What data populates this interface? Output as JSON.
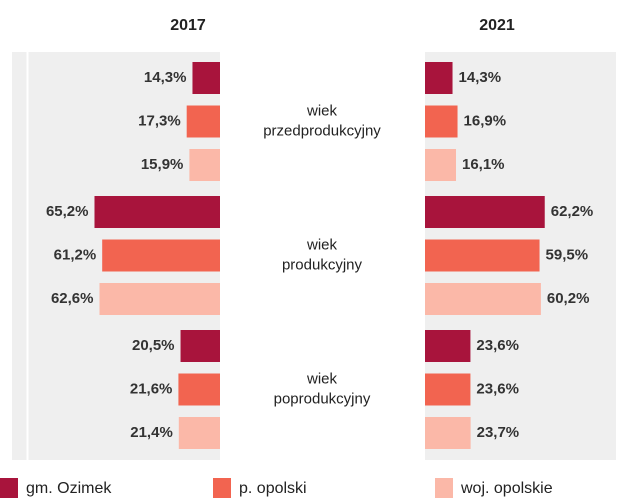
{
  "chart_data": {
    "type": "bar",
    "categories": [
      [
        "wiek",
        "przedprodukcyjny"
      ],
      [
        "wiek",
        "produkcyjny"
      ],
      [
        "wiek",
        "poprodukcyjny"
      ]
    ],
    "xlim": [
      0,
      100
    ],
    "series": [
      {
        "name": "gm. Ozimek",
        "color": "#a8143c"
      },
      {
        "name": "p. opolski",
        "color": "#f26450"
      },
      {
        "name": "woj. opolskie",
        "color": "#fbb8a8"
      }
    ],
    "panels": [
      {
        "title": "2017",
        "values": [
          [
            14.3,
            65.2,
            20.5
          ],
          [
            17.3,
            61.2,
            21.6
          ],
          [
            15.9,
            62.6,
            21.4
          ]
        ],
        "value_labels": [
          [
            "14,3%",
            "65,2%",
            "20,5%"
          ],
          [
            "17,3%",
            "61,2%",
            "21,6%"
          ],
          [
            "15,9%",
            "62,6%",
            "21,4%"
          ]
        ]
      },
      {
        "title": "2021",
        "values": [
          [
            14.3,
            62.2,
            23.6
          ],
          [
            16.9,
            59.5,
            23.6
          ],
          [
            16.1,
            60.2,
            23.7
          ]
        ],
        "value_labels": [
          [
            "14,3%",
            "62,2%",
            "23,6%"
          ],
          [
            "16,9%",
            "59,5%",
            "23,6%"
          ],
          [
            "16,1%",
            "60,2%",
            "23,7%"
          ]
        ]
      }
    ]
  }
}
